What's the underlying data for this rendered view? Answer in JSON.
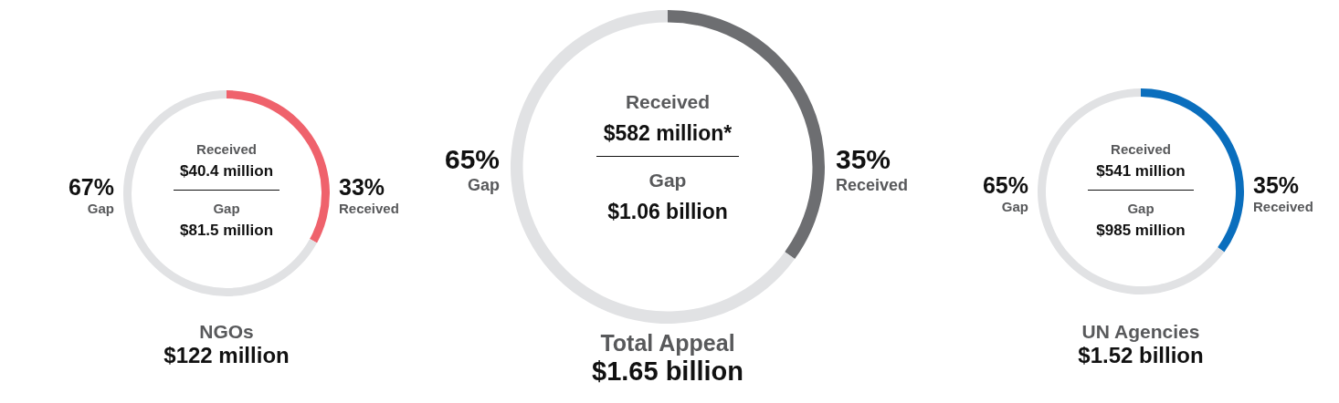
{
  "chart_data": [
    {
      "type": "donut",
      "title": "NGOs",
      "subtitle": "$122 million",
      "categories": [
        "Received",
        "Gap"
      ],
      "values": [
        33,
        67
      ],
      "colors": [
        "#ef626c",
        "#e1e2e4"
      ],
      "value_labels": [
        "33%",
        "67%"
      ],
      "annotations": [
        "Received",
        "$40.4 million",
        "Gap",
        "$81.5 million"
      ]
    },
    {
      "type": "donut",
      "title": "Total Appeal",
      "subtitle": "$1.65 billion",
      "categories": [
        "Received",
        "Gap"
      ],
      "values": [
        35,
        65
      ],
      "colors": [
        "#6d6e71",
        "#e1e2e4"
      ],
      "value_labels": [
        "35%",
        "65%"
      ],
      "annotations": [
        "Received",
        "$582 million*",
        "Gap",
        "$1.06 billion"
      ]
    },
    {
      "type": "donut",
      "title": "UN Agencies",
      "subtitle": "$1.52 billion",
      "categories": [
        "Received",
        "Gap"
      ],
      "values": [
        35,
        65
      ],
      "colors": [
        "#0a6ebd",
        "#e1e2e4"
      ],
      "value_labels": [
        "35%",
        "65%"
      ],
      "annotations": [
        "Received",
        "$541 million",
        "Gap",
        "$985 million"
      ]
    }
  ]
}
